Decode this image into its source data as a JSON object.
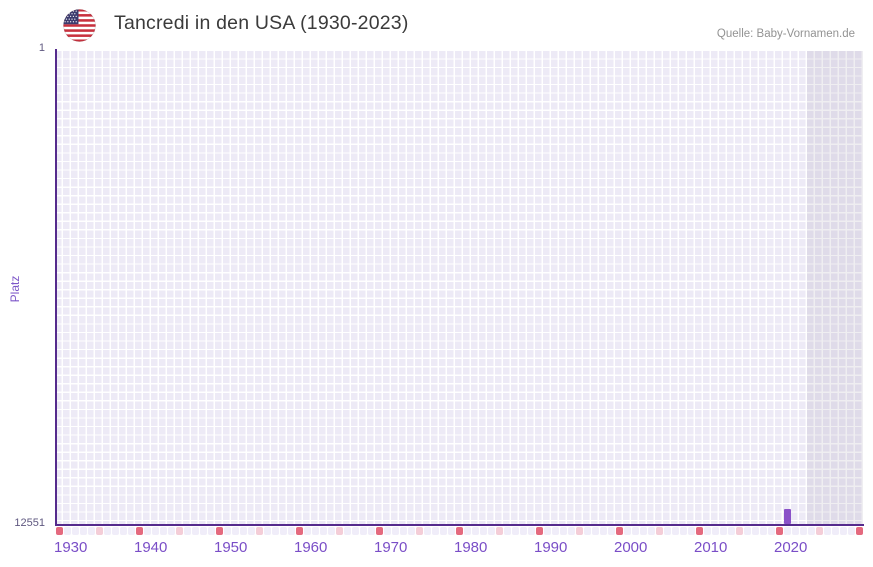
{
  "header": {
    "title": "Tancredi in den USA (1930-2023)",
    "source": "Quelle: Baby-Vornamen.de",
    "flag_icon": "us-flag-icon"
  },
  "y_axis": {
    "title": "Platz",
    "ticks": [
      "1",
      "12551"
    ]
  },
  "x_axis": {
    "start_year": 1930,
    "end_year": 2030,
    "major_tick_interval": 10,
    "minor_tick_interval": 5,
    "tick_labels": [
      "1930",
      "1940",
      "1950",
      "1960",
      "1970",
      "1980",
      "1990",
      "2000",
      "2010",
      "2020"
    ]
  },
  "chart_data": {
    "type": "bar",
    "title": "Tancredi in den USA (1930-2023)",
    "xlabel": "",
    "ylabel": "Platz",
    "x_range": [
      1930,
      2030
    ],
    "ylim": [
      1,
      12551
    ],
    "y_axis_reversed": true,
    "grid": true,
    "series": [
      {
        "name": "Tancredi",
        "points": [
          {
            "year": 2021,
            "rank": 12150
          }
        ]
      }
    ],
    "no_data_region_start": 2024,
    "notes": "Only 2021 shows a ranked bar (rank estimated from bar height); all other years 1930-2023 have no ranking. Region right of 2023 is greyed out."
  },
  "colors": {
    "bar": "#8a51c8",
    "axis_line": "#552b8d",
    "grid_cell": "#edeaf6",
    "grid_gap": "#ffffff",
    "future_overlay": "rgba(128,126,148,0.13)",
    "tick_major": "#e4697e",
    "tick_minor": "#f4cdd7",
    "tick_base": "#f0edf9",
    "x_label": "#7a4ec7",
    "y_label": "#5f5880",
    "axis_title": "#7d56c8",
    "title_text": "#3b3b3b",
    "source_text": "#939393"
  }
}
